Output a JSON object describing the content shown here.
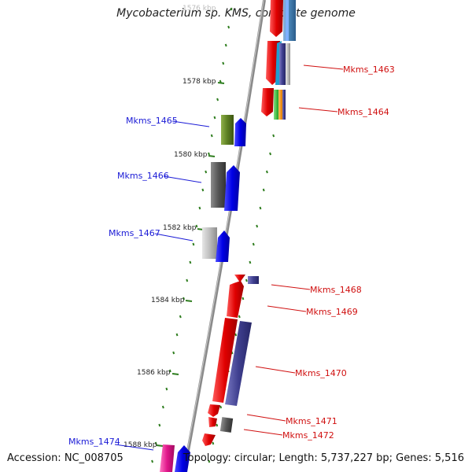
{
  "title": "Mycobacterium sp. KMS, complete genome",
  "footer": {
    "accession": "Accession: NC_008705",
    "summary": "Topology: circular; Length: 5,737,227 bp; Genes: 5,516"
  },
  "ticks": [
    {
      "label": "1576 kbp"
    },
    {
      "label": "1578 kbp"
    },
    {
      "label": "1580 kbp"
    },
    {
      "label": "1582 kbp"
    },
    {
      "label": "1584 kbp"
    },
    {
      "label": "1586 kbp"
    },
    {
      "label": "1588 kbp"
    }
  ],
  "genes": {
    "reverse": [
      {
        "label": "Mkms_1465"
      },
      {
        "label": "Mkms_1466"
      },
      {
        "label": "Mkms_1467"
      },
      {
        "label": "Mkms_1474"
      }
    ],
    "forward": [
      {
        "label": "Mkms_1463"
      },
      {
        "label": "Mkms_1464"
      },
      {
        "label": "Mkms_1468"
      },
      {
        "label": "Mkms_1469"
      },
      {
        "label": "Mkms_1470"
      },
      {
        "label": "Mkms_1471"
      },
      {
        "label": "Mkms_1472"
      }
    ]
  },
  "colors": {
    "backbone": "#8a8a8a",
    "tick": "#2e7d1e",
    "reverse_label": "#1a1ad6",
    "forward_label": "#d01010",
    "cds_forward": "#e00000",
    "cds_reverse": "#0000e0"
  }
}
